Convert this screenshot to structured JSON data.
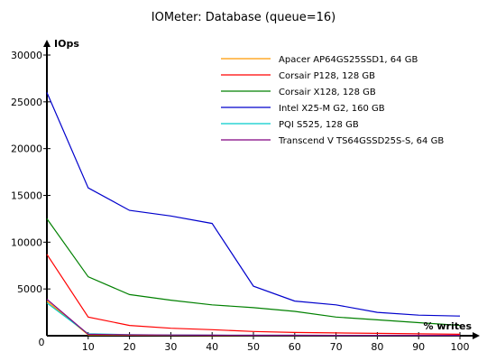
{
  "chart_data": {
    "type": "line",
    "title": "IOMeter: Database (queue=16)",
    "ylabel": "IOps",
    "xlabel": "% writes",
    "x": [
      0,
      10,
      20,
      30,
      40,
      50,
      60,
      70,
      80,
      90,
      100
    ],
    "xlim": [
      0,
      100
    ],
    "ylim": [
      0,
      30000
    ],
    "x_ticks": [
      "0",
      "10",
      "20",
      "30",
      "40",
      "50",
      "60",
      "70",
      "80",
      "90",
      "100"
    ],
    "y_ticks": [
      "5000",
      "10000",
      "15000",
      "20000",
      "25000",
      "30000"
    ],
    "origin_label": "0",
    "grid": false,
    "legend_position": "top-right",
    "series": [
      {
        "name": "Apacer AP64GS25SSD1, 64 GB",
        "color": "#ff9900",
        "values": [
          3700,
          100,
          60,
          50,
          40,
          40,
          40,
          40,
          40,
          40,
          40
        ]
      },
      {
        "name": "Corsair P128, 128 GB",
        "color": "#ff0000",
        "values": [
          8700,
          2000,
          1100,
          800,
          650,
          450,
          350,
          300,
          250,
          200,
          150
        ]
      },
      {
        "name": "Corsair X128, 128 GB",
        "color": "#008000",
        "values": [
          12500,
          6300,
          4400,
          3800,
          3300,
          3000,
          2600,
          2000,
          1700,
          1400,
          1100
        ]
      },
      {
        "name": "Intel X25-M G2, 160 GB",
        "color": "#0000cc",
        "values": [
          26000,
          15800,
          13400,
          12800,
          12000,
          5300,
          3700,
          3300,
          2500,
          2200,
          2100
        ]
      },
      {
        "name": "PQI S525, 128 GB",
        "color": "#00cccc",
        "values": [
          3500,
          200,
          120,
          80,
          60,
          50,
          50,
          40,
          40,
          40,
          40
        ]
      },
      {
        "name": "Transcend V TS64GSSD25S-S, 64 GB",
        "color": "#800080",
        "values": [
          3900,
          150,
          100,
          80,
          60,
          50,
          50,
          40,
          40,
          40,
          40
        ]
      }
    ]
  }
}
